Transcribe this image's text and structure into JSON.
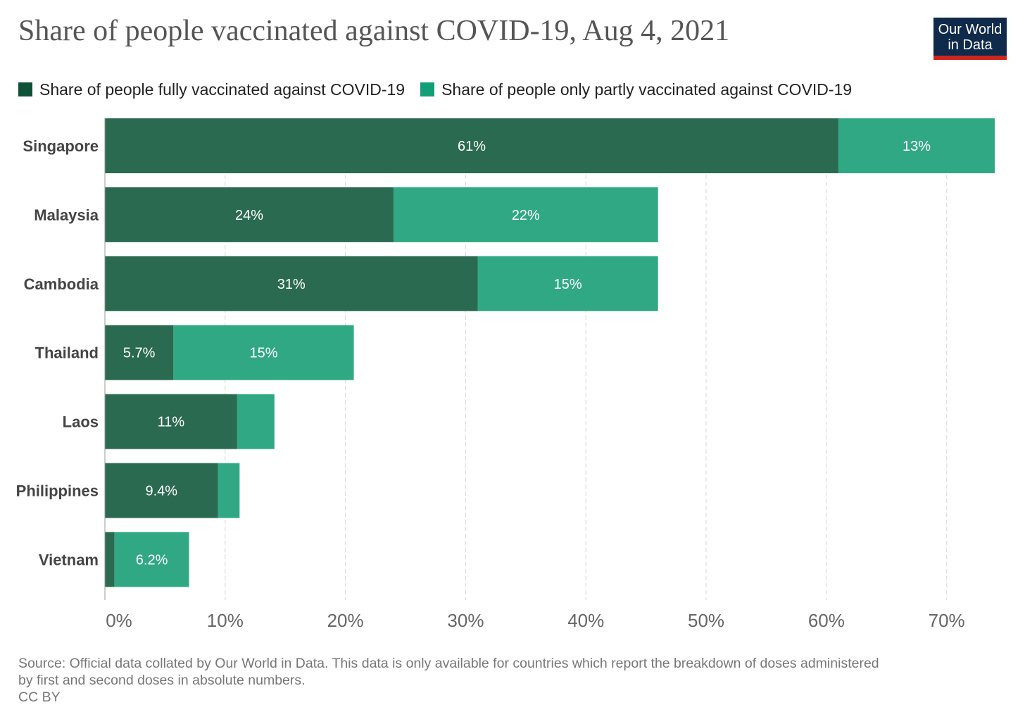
{
  "title": "Share of people vaccinated against COVID-19, Aug 4, 2021",
  "logo": {
    "line1": "Our World",
    "line2": "in Data"
  },
  "colors": {
    "fully": "#2a6a51",
    "partly": "#31a884",
    "legend_fully": "#0d5138",
    "legend_partly": "#149e78"
  },
  "footer": {
    "source_line1": "Source: Official data collated by Our World in Data. This data is only available for countries which report the breakdown of doses administered",
    "source_line2": "by first and second doses in absolute numbers.",
    "license": "CC BY"
  },
  "chart_data": {
    "type": "bar",
    "orientation": "horizontal",
    "stacked": true,
    "title": "Share of people vaccinated against COVID-19, Aug 4, 2021",
    "categories": [
      "Singapore",
      "Malaysia",
      "Cambodia",
      "Thailand",
      "Laos",
      "Philippines",
      "Vietnam"
    ],
    "series": [
      {
        "name": "Share of people fully vaccinated against COVID-19",
        "values": [
          61,
          24,
          31,
          5.7,
          11,
          9.4,
          0.8
        ],
        "labels": [
          "61%",
          "24%",
          "31%",
          "5.7%",
          "11%",
          "9.4%",
          ""
        ]
      },
      {
        "name": "Share of people only partly vaccinated against COVID-19",
        "values": [
          13,
          22,
          15,
          15,
          3.1,
          1.8,
          6.2
        ],
        "labels": [
          "13%",
          "22%",
          "15%",
          "15%",
          "",
          "",
          "6.2%"
        ]
      }
    ],
    "xlim": [
      0,
      74
    ],
    "xticks": [
      0,
      10,
      20,
      30,
      40,
      50,
      60,
      70
    ],
    "xtick_labels": [
      "0%",
      "10%",
      "20%",
      "30%",
      "40%",
      "50%",
      "60%",
      "70%"
    ],
    "grid": true,
    "legend": "top"
  }
}
